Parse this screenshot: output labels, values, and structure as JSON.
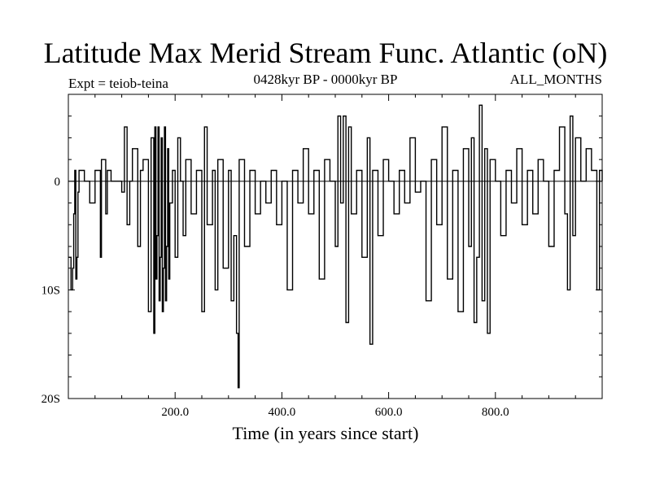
{
  "chart_data": {
    "type": "line",
    "title": "Latitude Max Merid Stream Func. Atlantic (oN)",
    "subtitle": "0428kyr BP - 0000kyr BP",
    "experiment_label": "Expt = teiob-teina",
    "season_label": "ALL_MONTHS",
    "xlabel": "Time (in years since start)",
    "ylabel": "",
    "xlim": [
      0,
      1000
    ],
    "ylim": [
      -20,
      8
    ],
    "x_ticks": [
      200,
      400,
      600,
      800
    ],
    "x_tick_labels": [
      "200.0",
      "400.0",
      "600.0",
      "800.0"
    ],
    "y_ticks": [
      0,
      -10,
      -20
    ],
    "y_tick_labels": [
      "0",
      "10S",
      "20S"
    ],
    "reference_line": 0,
    "series": [
      {
        "name": "Latitude of max meridional stream function (Atlantic)",
        "x": [
          0,
          5,
          8,
          10,
          12,
          14,
          16,
          18,
          20,
          30,
          40,
          50,
          60,
          62,
          70,
          73,
          80,
          100,
          105,
          110,
          115,
          120,
          130,
          135,
          140,
          150,
          155,
          160,
          162,
          164,
          166,
          168,
          170,
          172,
          174,
          176,
          178,
          180,
          182,
          184,
          186,
          188,
          190,
          195,
          200,
          205,
          210,
          215,
          220,
          230,
          240,
          250,
          255,
          260,
          270,
          275,
          280,
          290,
          300,
          305,
          310,
          315,
          318,
          320,
          330,
          340,
          350,
          360,
          370,
          380,
          390,
          400,
          410,
          420,
          430,
          440,
          450,
          460,
          470,
          480,
          490,
          500,
          505,
          510,
          515,
          520,
          525,
          530,
          540,
          550,
          560,
          565,
          570,
          580,
          590,
          600,
          610,
          620,
          630,
          640,
          650,
          660,
          670,
          680,
          690,
          700,
          710,
          720,
          730,
          740,
          750,
          755,
          760,
          765,
          770,
          775,
          780,
          785,
          790,
          800,
          810,
          820,
          830,
          840,
          850,
          860,
          870,
          880,
          890,
          900,
          910,
          920,
          930,
          935,
          940,
          945,
          950,
          960,
          970,
          980,
          990,
          995,
          1000
        ],
        "values": [
          -7,
          -10,
          -8,
          -3,
          1,
          -9,
          -7,
          -1,
          1,
          0,
          -2,
          1,
          -7,
          2,
          -3,
          1,
          0,
          -1,
          5,
          -4,
          0,
          3,
          -6,
          1,
          2,
          -12,
          4,
          -14,
          5,
          -9,
          -5,
          5,
          -11,
          -7,
          4,
          -12,
          -8,
          5,
          -11,
          -6,
          3,
          -9,
          -2,
          1,
          -7,
          4,
          0,
          -5,
          2,
          -3,
          1,
          -12,
          5,
          -4,
          1,
          -10,
          2,
          -8,
          1,
          -11,
          -5,
          -14,
          -19,
          2,
          -6,
          1,
          -3,
          0,
          -2,
          1,
          -4,
          0,
          -10,
          1,
          -2,
          3,
          -3,
          1,
          -9,
          2,
          0,
          -6,
          6,
          -2,
          6,
          -13,
          5,
          -3,
          1,
          -7,
          4,
          -15,
          1,
          -5,
          2,
          0,
          -3,
          1,
          -2,
          4,
          -1,
          0,
          -11,
          2,
          -4,
          5,
          -9,
          1,
          -12,
          3,
          -6,
          4,
          -13,
          -7,
          7,
          -11,
          3,
          -14,
          2,
          0,
          -5,
          1,
          -2,
          3,
          -4,
          1,
          -3,
          2,
          0,
          -6,
          1,
          5,
          -3,
          -10,
          6,
          -5,
          4,
          0,
          3,
          1,
          -10,
          1,
          0
        ]
      }
    ]
  }
}
